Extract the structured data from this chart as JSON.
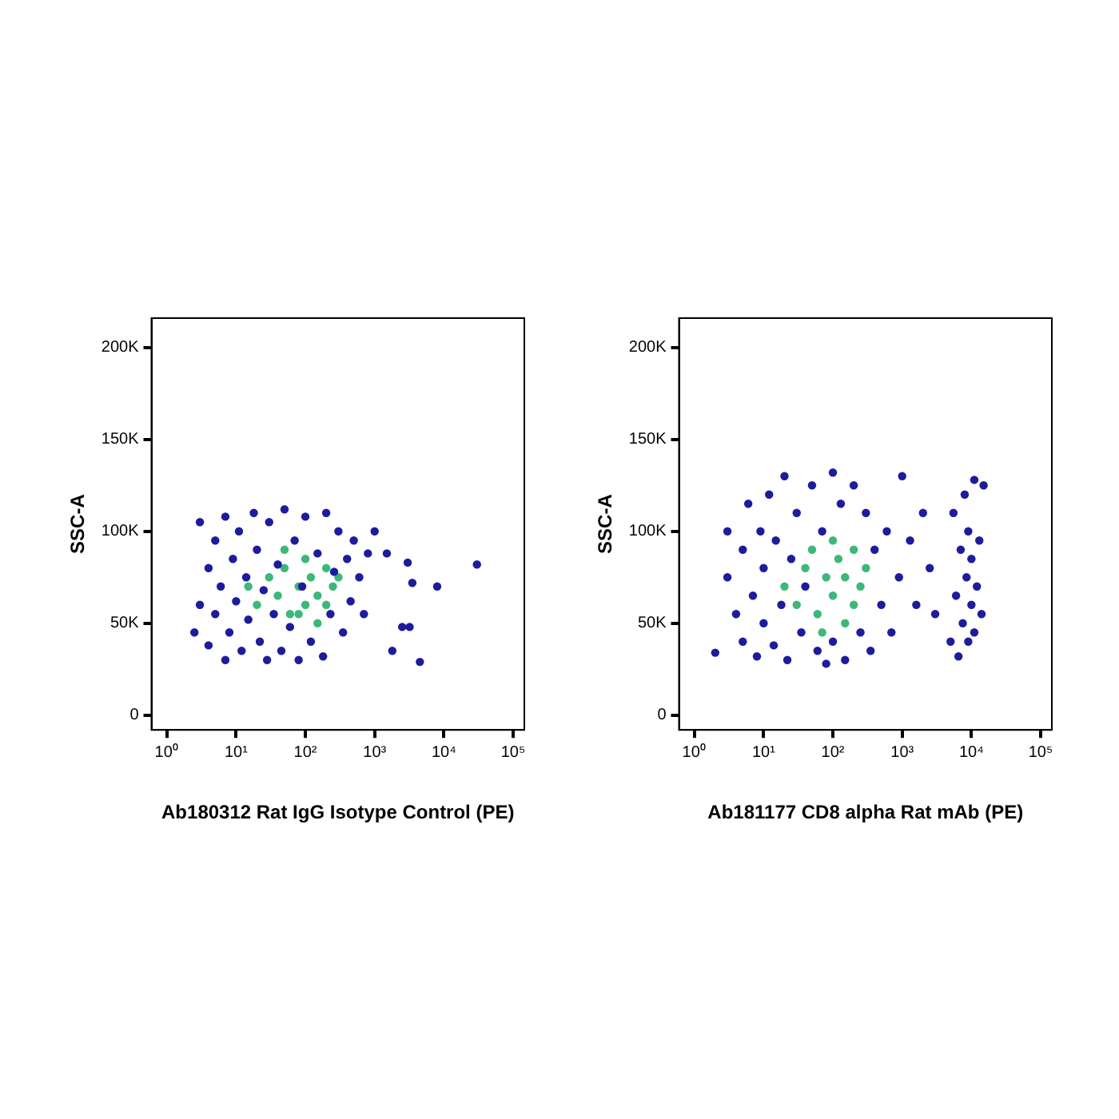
{
  "chart_data": [
    {
      "type": "scatter",
      "xlabel": "Ab180312 Rat IgG Isotype Control (PE)",
      "ylabel": "SSC-A",
      "log": "x",
      "grid": false,
      "legend": false,
      "marker": "circle",
      "xlim": [
        0.6,
        145000
      ],
      "xticks": [
        {
          "value": 1,
          "label": "10⁰"
        },
        {
          "value": 10,
          "label": "10¹"
        },
        {
          "value": 100,
          "label": "10²"
        },
        {
          "value": 1000,
          "label": "10³"
        },
        {
          "value": 10000,
          "label": "10⁴"
        },
        {
          "value": 100000,
          "label": "10⁵"
        }
      ],
      "ylim": [
        -8000,
        216000
      ],
      "yticks": [
        0,
        {
          "value": 50000,
          "label": "50K"
        },
        {
          "value": 100000,
          "label": "100K"
        },
        {
          "value": 150000,
          "label": "150K"
        },
        {
          "value": 200000,
          "label": "200K"
        }
      ],
      "series": [
        {
          "color": "#1c1c9c",
          "x": [
            2.5,
            3,
            3,
            4,
            4,
            5,
            5,
            6,
            7,
            7,
            8,
            9,
            10,
            11,
            12,
            14,
            15,
            18,
            20,
            22,
            25,
            28,
            30,
            35,
            40,
            45,
            50,
            60,
            70,
            80,
            90,
            100,
            120,
            150,
            180,
            200,
            230,
            260,
            300,
            350,
            400,
            450,
            500,
            600,
            700,
            800,
            1000,
            1500,
            1800,
            2500,
            3000,
            3200,
            3500,
            4500,
            8000,
            30000
          ],
          "values": [
            45000,
            105000,
            60000,
            38000,
            80000,
            95000,
            55000,
            70000,
            30000,
            108000,
            45000,
            85000,
            62000,
            100000,
            35000,
            75000,
            52000,
            110000,
            90000,
            40000,
            68000,
            30000,
            105000,
            55000,
            82000,
            35000,
            112000,
            48000,
            95000,
            30000,
            70000,
            108000,
            40000,
            88000,
            32000,
            110000,
            55000,
            78000,
            100000,
            45000,
            85000,
            62000,
            95000,
            75000,
            55000,
            88000,
            100000,
            88000,
            35000,
            48000,
            83000,
            48000,
            72000,
            29000,
            70000,
            82000
          ]
        },
        {
          "color": "#3cb878",
          "x": [
            15,
            20,
            30,
            40,
            50,
            60,
            80,
            100,
            100,
            120,
            150,
            150,
            200,
            200,
            250,
            300,
            80,
            50
          ],
          "values": [
            70000,
            60000,
            75000,
            65000,
            80000,
            55000,
            70000,
            85000,
            60000,
            75000,
            65000,
            50000,
            80000,
            60000,
            70000,
            75000,
            55000,
            90000
          ]
        }
      ]
    },
    {
      "type": "scatter",
      "xlabel": "Ab181177 CD8 alpha Rat mAb (PE)",
      "ylabel": "SSC-A",
      "log": "x",
      "grid": false,
      "legend": false,
      "marker": "circle",
      "xlim": [
        0.6,
        145000
      ],
      "xticks": [
        {
          "value": 1,
          "label": "10⁰"
        },
        {
          "value": 10,
          "label": "10¹"
        },
        {
          "value": 100,
          "label": "10²"
        },
        {
          "value": 1000,
          "label": "10³"
        },
        {
          "value": 10000,
          "label": "10⁴"
        },
        {
          "value": 100000,
          "label": "10⁵"
        }
      ],
      "ylim": [
        -8000,
        216000
      ],
      "yticks": [
        0,
        {
          "value": 50000,
          "label": "50K"
        },
        {
          "value": 100000,
          "label": "100K"
        },
        {
          "value": 150000,
          "label": "150K"
        },
        {
          "value": 200000,
          "label": "200K"
        }
      ],
      "series": [
        {
          "color": "#1c1c9c",
          "x": [
            2,
            3,
            3,
            4,
            5,
            5,
            6,
            7,
            8,
            9,
            10,
            10,
            12,
            14,
            15,
            18,
            20,
            22,
            25,
            30,
            35,
            40,
            50,
            60,
            70,
            80,
            100,
            100,
            130,
            150,
            200,
            250,
            300,
            350,
            400,
            500,
            600,
            700,
            900,
            1000,
            1300,
            1600,
            2000,
            2500,
            3000,
            5000,
            5500,
            6000,
            6500,
            7000,
            7500,
            8000,
            8500,
            9000,
            9000,
            10000,
            10000,
            11000,
            11000,
            12000,
            13000,
            14000,
            15000
          ],
          "values": [
            34000,
            100000,
            75000,
            55000,
            90000,
            40000,
            115000,
            65000,
            32000,
            100000,
            80000,
            50000,
            120000,
            38000,
            95000,
            60000,
            130000,
            30000,
            85000,
            110000,
            45000,
            70000,
            125000,
            35000,
            100000,
            28000,
            132000,
            40000,
            115000,
            30000,
            125000,
            45000,
            110000,
            35000,
            90000,
            60000,
            100000,
            45000,
            75000,
            130000,
            95000,
            60000,
            110000,
            80000,
            55000,
            40000,
            110000,
            65000,
            32000,
            90000,
            50000,
            120000,
            75000,
            100000,
            40000,
            60000,
            85000,
            128000,
            45000,
            70000,
            95000,
            55000,
            125000
          ]
        },
        {
          "color": "#3cb878",
          "x": [
            20,
            30,
            40,
            60,
            80,
            100,
            120,
            150,
            150,
            200,
            200,
            250,
            300,
            100,
            50,
            70
          ],
          "values": [
            70000,
            60000,
            80000,
            55000,
            75000,
            65000,
            85000,
            50000,
            75000,
            60000,
            90000,
            70000,
            80000,
            95000,
            90000,
            45000
          ]
        }
      ]
    }
  ]
}
